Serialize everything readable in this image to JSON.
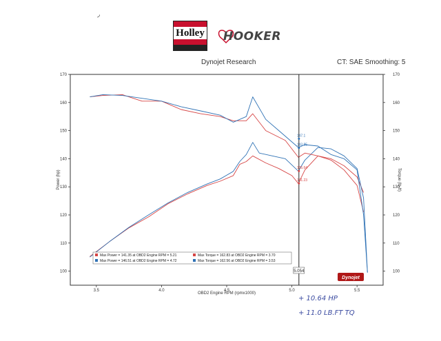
{
  "header": {
    "brand_left": "Holley",
    "brand_right": "HOOKER",
    "title": "Dynojet Research",
    "right": "CT: SAE Smoothing: 5"
  },
  "annotations": {
    "line1": "+ 10.64 HP",
    "line2": "+ 11.0 LB.FT TQ"
  },
  "colors": {
    "red": "#d64545",
    "blue": "#2f72b5",
    "axis": "#333333",
    "brand_red": "#c8102e"
  },
  "chart_data": {
    "type": "line",
    "xlabel": "OBD2 Engine RPM (rpmx1000)",
    "ylabel_left": "Power (hp)",
    "ylabel_right": "Torque (lb-ft)",
    "xlim": [
      3.3,
      5.7
    ],
    "ylim": [
      95,
      170
    ],
    "xticks": [
      "3.5",
      "4.0",
      "4.5",
      "5.0",
      "5.5"
    ],
    "xtick_values": [
      3.5,
      4.0,
      4.5,
      5.0,
      5.5
    ],
    "yticks": [
      "170",
      "160",
      "150",
      "140",
      "130",
      "120",
      "110",
      "100"
    ],
    "ytick_values": [
      170,
      160,
      150,
      140,
      130,
      120,
      110,
      100
    ],
    "cursor_x": 5.054,
    "cursor_label": "5.054",
    "cursor_values": [
      "147.1",
      "143.85",
      "135.64",
      "131.23"
    ],
    "series": [
      {
        "name": "Power",
        "color": "#d64545",
        "x": [
          3.45,
          3.6,
          3.75,
          3.9,
          4.05,
          4.2,
          4.35,
          4.45,
          4.55,
          4.6,
          4.65,
          4.7,
          4.8,
          4.9,
          5.0,
          5.05,
          5.1,
          5.2,
          5.3,
          5.4,
          5.5,
          5.55
        ],
        "values": [
          105.2,
          110.5,
          115.4,
          119.3,
          124.0,
          127.5,
          130.5,
          132.0,
          134.0,
          138.0,
          139.0,
          141.0,
          138.5,
          136.5,
          134.0,
          131.2,
          136.0,
          141.0,
          140.0,
          137.5,
          133.5,
          128.0
        ]
      },
      {
        "name": "Power",
        "color": "#2f72b5",
        "x": [
          3.45,
          3.6,
          3.75,
          3.9,
          4.05,
          4.2,
          4.35,
          4.45,
          4.55,
          4.6,
          4.65,
          4.7,
          4.75,
          4.85,
          4.95,
          5.05,
          5.1,
          5.2,
          5.3,
          5.4,
          5.5,
          5.55,
          5.58
        ],
        "values": [
          105.0,
          110.5,
          115.6,
          120.0,
          124.3,
          128.0,
          131.0,
          132.8,
          135.5,
          139.0,
          141.5,
          145.8,
          142.0,
          141.0,
          140.0,
          135.6,
          139.5,
          144.0,
          143.5,
          141.0,
          136.5,
          126.0,
          99.5
        ]
      },
      {
        "name": "Torque",
        "color": "#d64545",
        "x": [
          3.45,
          3.55,
          3.7,
          3.85,
          4.0,
          4.15,
          4.3,
          4.45,
          4.55,
          4.65,
          4.7,
          4.8,
          4.95,
          5.05,
          5.1,
          5.2,
          5.3,
          5.4,
          5.5,
          5.55
        ],
        "values": [
          162.0,
          162.5,
          162.8,
          160.5,
          160.5,
          157.5,
          156.0,
          155.0,
          153.5,
          153.5,
          156.0,
          150.0,
          146.5,
          140.5,
          142.0,
          141.0,
          139.5,
          136.0,
          130.5,
          121.0
        ]
      },
      {
        "name": "Torque",
        "color": "#2f72b5",
        "x": [
          3.45,
          3.55,
          3.7,
          3.85,
          4.0,
          4.15,
          4.3,
          4.45,
          4.55,
          4.65,
          4.7,
          4.8,
          4.9,
          5.05,
          5.1,
          5.2,
          5.3,
          5.4,
          5.5,
          5.55,
          5.58
        ],
        "values": [
          162.0,
          162.8,
          162.5,
          161.5,
          160.5,
          158.5,
          157.0,
          155.5,
          153.0,
          155.0,
          162.0,
          154.0,
          150.0,
          144.0,
          145.0,
          144.5,
          141.5,
          140.0,
          136.0,
          120.0,
          99.5
        ]
      }
    ],
    "legend": {
      "placement": "bottom-left",
      "rows": [
        {
          "color": "#d64545",
          "text": "Max Power = 141.35 at OBD2 Engine RPM = 5.21"
        },
        {
          "color": "#d64545",
          "text": "Max Torque = 162.83 at OBD2 Engine RPM = 3.70"
        },
        {
          "color": "#2f72b5",
          "text": "Max Power = 146.51 at OBD2 Engine RPM = 4.72"
        },
        {
          "color": "#2f72b5",
          "text": "Max Torque = 162.56 at OBD2 Engine RPM = 3.53"
        }
      ]
    },
    "watermark": "Dynojet"
  }
}
